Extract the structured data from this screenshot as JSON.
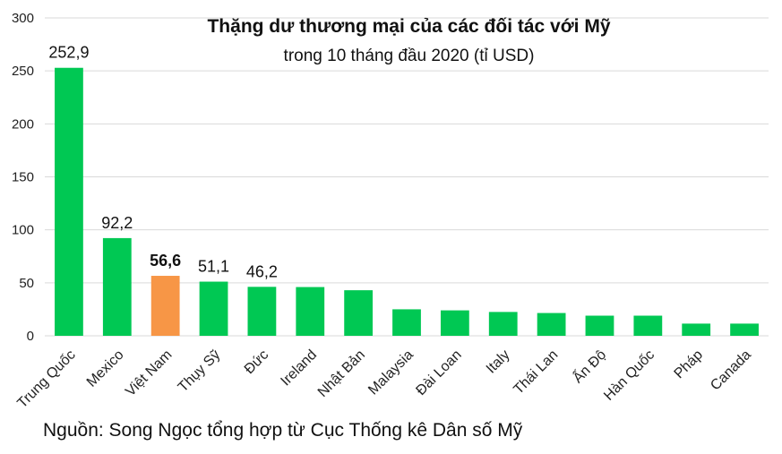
{
  "chart_data": {
    "type": "bar",
    "title": "Thặng dư thương mại của các đối tác với Mỹ",
    "subtitle": "trong 10 tháng đầu 2020 (tỉ USD)",
    "xlabel": "",
    "ylabel": "",
    "ylim": [
      0,
      300
    ],
    "yticks": [
      0,
      50,
      100,
      150,
      200,
      250,
      300
    ],
    "grid": true,
    "categories": [
      "Trung Quốc",
      "Mexico",
      "Việt Nam",
      "Thụy Sỹ",
      "Đức",
      "Ireland",
      "Nhật Bản",
      "Malaysia",
      "Đài Loan",
      "Italy",
      "Thái Lan",
      "Ấn Độ",
      "Hàn Quốc",
      "Pháp",
      "Canada"
    ],
    "values": [
      252.9,
      92.2,
      56.6,
      51.1,
      46.2,
      46,
      43,
      25,
      24,
      22.5,
      21.5,
      19,
      19,
      11.5,
      11.5
    ],
    "data_labels": [
      "252,9",
      "92,2",
      "56,6",
      "51,1",
      "46,2",
      "",
      "",
      "",
      "",
      "",
      "",
      "",
      "",
      "",
      ""
    ],
    "highlight_index": 2,
    "colors": {
      "bar": "#00c853",
      "highlight": "#f79646",
      "grid": "#d9d9d9"
    }
  },
  "source": "Nguồn: Song Ngọc tổng hợp từ Cục Thống kê Dân số Mỹ"
}
